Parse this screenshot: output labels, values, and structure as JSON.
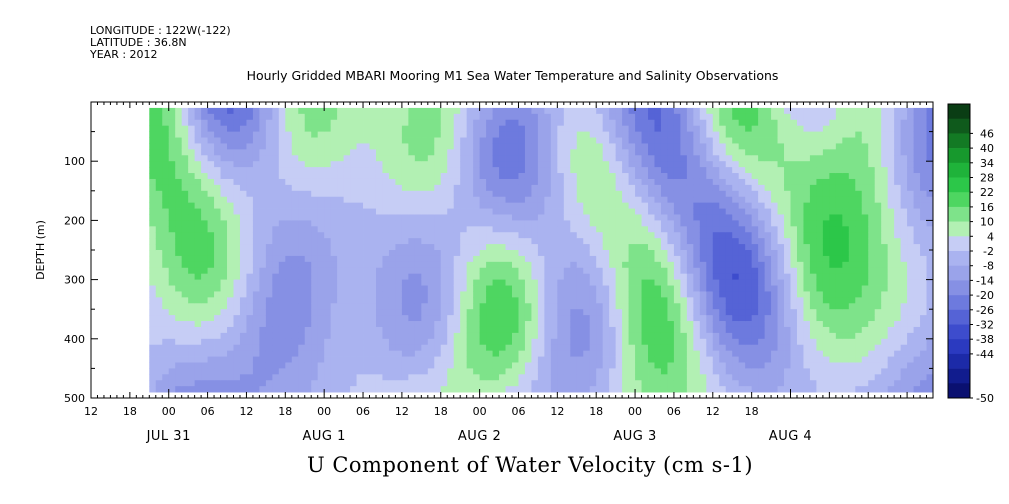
{
  "header": {
    "longitude": "LONGITUDE : 122W(-122)",
    "latitude": "LATITUDE : 36.8N",
    "year": "YEAR : 2012"
  },
  "chart_data": {
    "type": "heatmap",
    "title": "Hourly Gridded MBARI Mooring M1 Sea Water Temperature and Salinity Observations",
    "subtitle": "U Component of Water Velocity (cm s-1)",
    "ylabel": "DEPTH (m)",
    "ylim": [
      500,
      0
    ],
    "y_ticks": [
      100,
      200,
      300,
      400,
      500
    ],
    "x_hour_ticks": [
      "12",
      "18",
      "00",
      "06",
      "12",
      "18",
      "00",
      "06",
      "12",
      "18",
      "00",
      "06",
      "12",
      "18",
      "00",
      "06",
      "12",
      "18"
    ],
    "x_date_labels": [
      "JUL 31",
      "AUG  1",
      "AUG  2",
      "AUG  3",
      "AUG  4"
    ],
    "x_range": [
      "2012-07-30 12:00",
      "2012-08-04 22:00"
    ],
    "data_range": [
      "2012-07-30 21:00",
      "2012-08-04 22:00"
    ],
    "depth_range": [
      10,
      490
    ],
    "colorbar": {
      "labels": [
        "46",
        "40",
        "34",
        "28",
        "22",
        "16",
        "10",
        "4",
        "-2",
        "-8",
        "-14",
        "-20",
        "-26",
        "-32",
        "-38",
        "-44",
        "-50"
      ],
      "colors": [
        "#0a3d14",
        "#0f5a1c",
        "#137a24",
        "#17992d",
        "#1fb33a",
        "#2cc749",
        "#4ed661",
        "#7ee38a",
        "#b2f0b3",
        "#c6cdf5",
        "#aab3f0",
        "#9aa3ea",
        "#8690e4",
        "#6d7ade",
        "#5563d6",
        "#3d4ccd",
        "#2b3ac0",
        "#1c2aa8",
        "#111c8e",
        "#0a1070"
      ]
    }
  }
}
